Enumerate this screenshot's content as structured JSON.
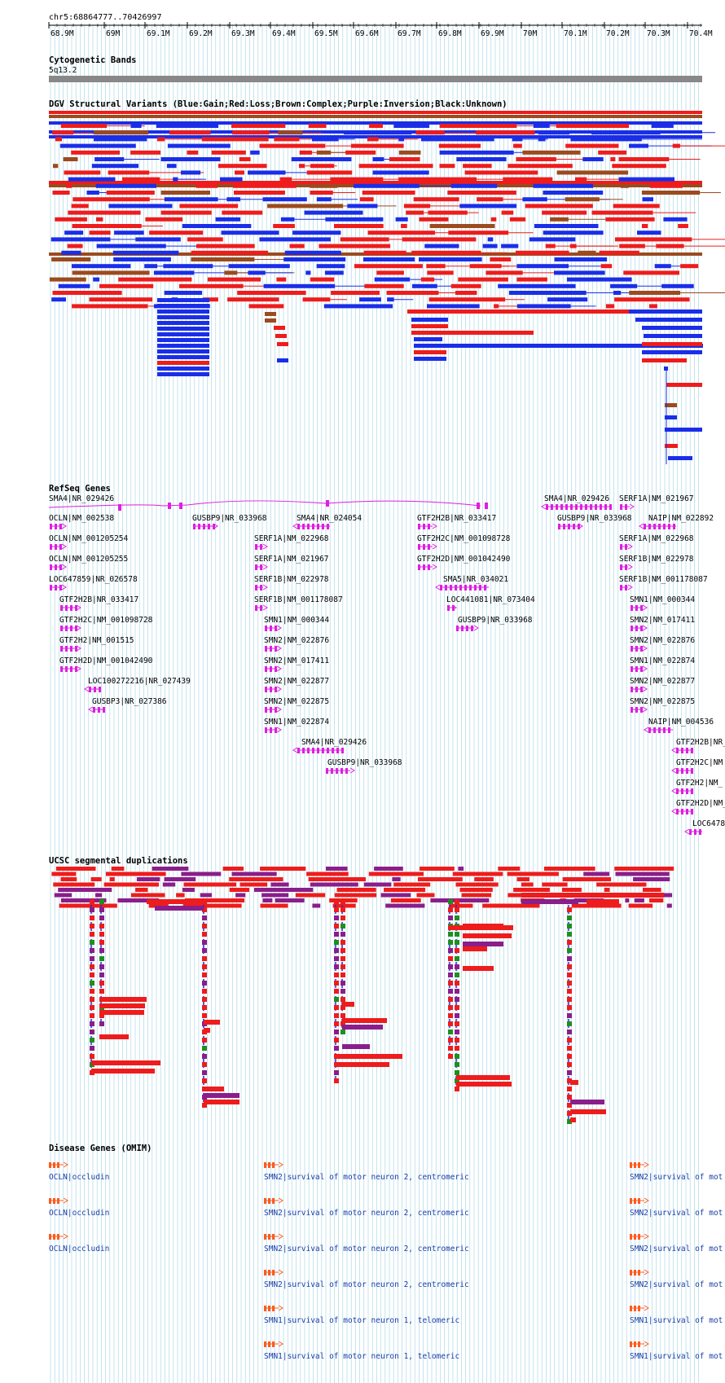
{
  "ruler": {
    "locus": "chr5:68864777..70426997",
    "ticks": [
      "68.9M",
      "69M",
      "69.1M",
      "69.2M",
      "69.3M",
      "69.4M",
      "69.5M",
      "69.6M",
      "69.7M",
      "69.8M",
      "69.9M",
      "70M",
      "70.1M",
      "70.2M",
      "70.3M",
      "70.4M"
    ]
  },
  "cyto": {
    "title": "Cytogenetic Bands",
    "band": "5q13.2"
  },
  "dgv": {
    "title": "DGV Structural Variants (Blue:Gain;Red:Loss;Brown:Complex;Purple:Inversion;Black:Unknown)"
  },
  "refseq": {
    "title": "RefSeq Genes",
    "genes": [
      "SMA4|NR_029426",
      "OCLN|NM_002538",
      "OCLN|NM_001205254",
      "OCLN|NM_001205255",
      "LOC647859|NR_026578",
      "GTF2H2B|NR_033417",
      "GTF2H2C|NM_001098728",
      "GTF2H2|NM_001515",
      "GTF2H2D|NM_001042490",
      "LOC100272216|NR_027439",
      "GUSBP3|NR_027386",
      "GUSBP9|NR_033968",
      "SMA4|NR_024054",
      "SERF1A|NM_022968",
      "SERF1A|NM_021967",
      "SERF1B|NM_022978",
      "SERF1B|NM_001178087",
      "SMN1|NM_000344",
      "SMN2|NM_022876",
      "SMN2|NM_017411",
      "SMN2|NM_022877",
      "SMN2|NM_022875",
      "SMN1|NM_022874",
      "SMA4|NR_029426",
      "GUSBP9|NR_033968",
      "GTF2H2B|NR_033417",
      "GTF2H2C|NM_001098728",
      "GTF2H2D|NM_001042490",
      "SMA5|NR_034021",
      "LOC441081|NR_073404",
      "GUSBP9|NR_033968",
      "SMA4|NR_029426",
      "GUSBP9|NR_033968",
      "SERF1A|NM_021967",
      "NAIP|NM_022892",
      "SERF1A|NM_022968",
      "SERF1B|NM_022978",
      "SERF1B|NM_001178087",
      "SMN1|NM_000344",
      "SMN2|NM_017411",
      "SMN2|NM_022876",
      "SMN1|NM_022874",
      "SMN2|NM_022877",
      "SMN2|NM_022875",
      "NAIP|NM_004536",
      "GTF2H2B|NR_",
      "GTF2H2C|NM",
      "GTF2H2|NM_",
      "GTF2H2D|NM_",
      "LOC6478"
    ]
  },
  "segdup": {
    "title": "UCSC segmental duplications"
  },
  "omim": {
    "title": "Disease Genes (OMIM)",
    "labels": [
      "OCLN|occludin",
      "SMN2|survival of motor neuron 2, centromeric",
      "SMN1|survival of motor neuron 1, telomeric",
      "SMN2|survival of mot",
      "SMN1|survival of mot"
    ]
  },
  "colors": {
    "gain": "#1a2ee8",
    "loss": "#ee1c1c",
    "complex": "#9c4a1e",
    "inversion": "#8a1e8a",
    "gene": "#e01ee0",
    "grid": "#9fd3e3",
    "omim_text": "#1a3fa8",
    "segdup_green": "#1f8f1f"
  }
}
